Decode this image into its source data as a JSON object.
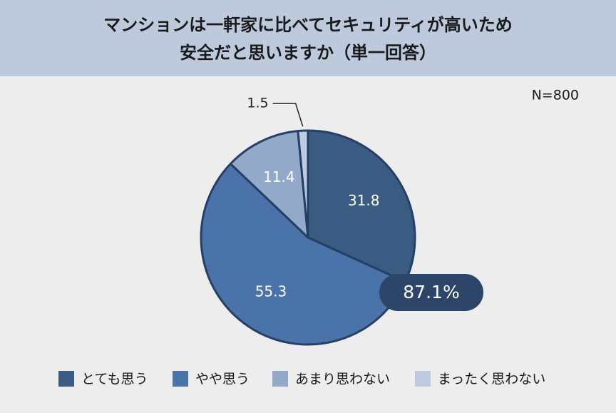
{
  "chart_data": {
    "type": "pie",
    "title": [
      "マンションは一軒家に比べてセキュリティが高いため",
      "安全だと思いますか（単一回答）"
    ],
    "note": "N=800",
    "annotation": "87.1%",
    "categories": [
      "とても思う",
      "やや思う",
      "あまり思わない",
      "まったく思わない"
    ],
    "values": [
      31.8,
      55.3,
      11.4,
      1.5
    ],
    "colors": [
      "#3a5b82",
      "#4a73a9",
      "#93a9c9",
      "#bdcae0"
    ],
    "legend": "bottom"
  }
}
